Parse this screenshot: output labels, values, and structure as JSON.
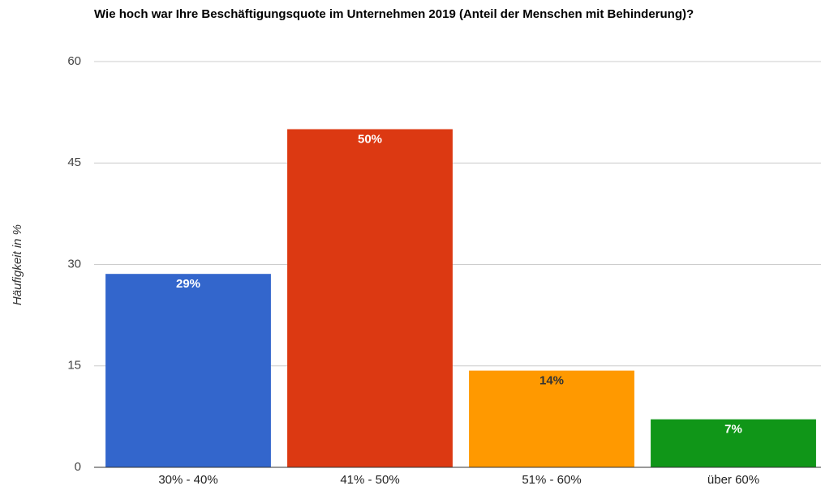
{
  "chart_data": {
    "type": "bar",
    "title": "Wie hoch war Ihre Beschäftigungsquote im Unternehmen 2019 (Anteil der Menschen mit Behinderung)?",
    "y_label": "Häufigkeit in %",
    "categories": [
      "30% - 40%",
      "41% - 50%",
      "51% - 60%",
      "über 60%"
    ],
    "values": [
      28.6,
      50,
      14.3,
      7.1
    ],
    "value_labels": [
      "29%",
      "50%",
      "14%",
      "7%"
    ],
    "colors": [
      "#3366cc",
      "#dc3912",
      "#ff9900",
      "#109618"
    ],
    "value_label_colors": [
      "#ffffff",
      "#ffffff",
      "#333333",
      "#ffffff"
    ],
    "ylim": [
      0,
      60
    ],
    "yticks": [
      0,
      15,
      30,
      45,
      60
    ],
    "grid": true
  }
}
